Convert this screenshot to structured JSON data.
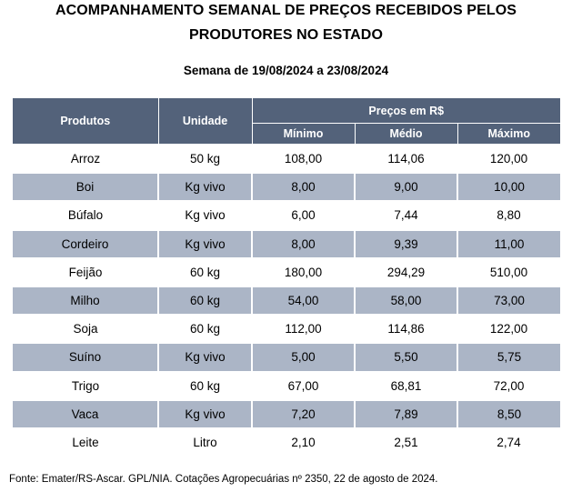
{
  "title": {
    "line1": "ACOMPANHAMENTO SEMANAL DE PREÇOS RECEBIDOS PELOS",
    "line2": "PRODUTORES NO ESTADO"
  },
  "week": "Semana de 19/08/2024 a 23/08/2024",
  "table": {
    "headers": {
      "produtos": "Produtos",
      "unidade": "Unidade",
      "precos": "Preços em R$",
      "minimo": "Mínimo",
      "medio": "Médio",
      "maximo": "Máximo"
    },
    "rows": [
      [
        "Arroz",
        "50 kg",
        "108,00",
        "114,06",
        "120,00"
      ],
      [
        "Boi",
        "Kg vivo",
        "8,00",
        "9,00",
        "10,00"
      ],
      [
        "Búfalo",
        "Kg vivo",
        "6,00",
        "7,44",
        "8,80"
      ],
      [
        "Cordeiro",
        "Kg vivo",
        "8,00",
        "9,39",
        "11,00"
      ],
      [
        "Feijão",
        "60 kg",
        "180,00",
        "294,29",
        "510,00"
      ],
      [
        "Milho",
        "60 kg",
        "54,00",
        "58,00",
        "73,00"
      ],
      [
        "Soja",
        "60 kg",
        "112,00",
        "114,86",
        "122,00"
      ],
      [
        "Suíno",
        "Kg vivo",
        "5,00",
        "5,50",
        "5,75"
      ],
      [
        "Trigo",
        "60 kg",
        "67,00",
        "68,81",
        "72,00"
      ],
      [
        "Vaca",
        "Kg vivo",
        "7,20",
        "7,89",
        "8,50"
      ],
      [
        "Leite",
        "Litro",
        "2,10",
        "2,51",
        "2,74"
      ]
    ]
  },
  "source": "Fonte: Emater/RS-Ascar. GPL/NIA. Cotações Agropecuárias nº 2350, 22 de agosto de 2024.",
  "colors": {
    "header_bg": "#53627a",
    "shaded_row_bg": "#abb5c6"
  }
}
